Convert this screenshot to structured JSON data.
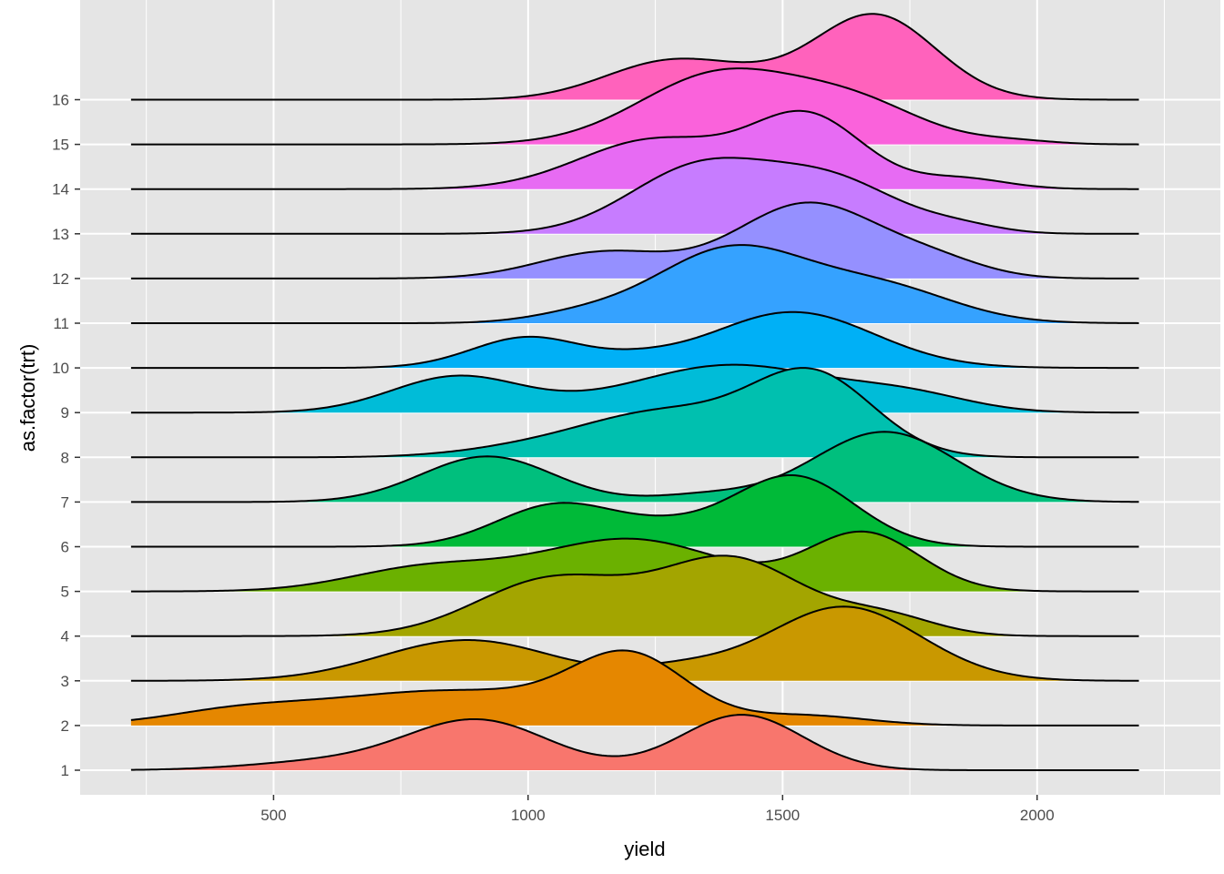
{
  "chart_data": {
    "type": "ridgeline",
    "title": "",
    "xlabel": "yield",
    "ylabel": "as.factor(trt)",
    "xlim": [
      120,
      2360
    ],
    "x_ticks": [
      500,
      1000,
      1500,
      2000
    ],
    "x_tick_labels": [
      "500",
      "1000",
      "1500",
      "2000"
    ],
    "x_minor_ticks": [
      250,
      750,
      1250,
      1750,
      2250
    ],
    "y_tick_labels": [
      "1",
      "2",
      "3",
      "4",
      "5",
      "6",
      "7",
      "8",
      "9",
      "10",
      "11",
      "12",
      "13",
      "14",
      "15",
      "16"
    ],
    "range": [
      220,
      2200
    ],
    "grid": true,
    "legend": "none",
    "background": "#e5e5e5",
    "series": [
      {
        "name": "1",
        "color": "#F8766D",
        "peak": 1.24,
        "components": [
          [
            900,
            140,
            0.9
          ],
          [
            1420,
            120,
            1.0
          ],
          [
            600,
            150,
            0.15
          ]
        ]
      },
      {
        "name": "2",
        "color": "#E58700",
        "peak": 1.68,
        "components": [
          [
            1200,
            110,
            1.0
          ],
          [
            850,
            280,
            0.6
          ],
          [
            1550,
            120,
            0.15
          ],
          [
            420,
            130,
            0.15
          ]
        ]
      },
      {
        "name": "3",
        "color": "#C99800",
        "peak": 1.66,
        "components": [
          [
            1620,
            150,
            1.0
          ],
          [
            880,
            170,
            0.55
          ],
          [
            1300,
            100,
            0.15
          ]
        ]
      },
      {
        "name": "4",
        "color": "#A3A500",
        "peak": 1.8,
        "components": [
          [
            1400,
            140,
            1.0
          ],
          [
            1050,
            150,
            0.75
          ],
          [
            1700,
            100,
            0.25
          ]
        ]
      },
      {
        "name": "5",
        "color": "#6BB100",
        "peak": 1.34,
        "components": [
          [
            1660,
            110,
            1.0
          ],
          [
            1200,
            180,
            0.9
          ],
          [
            800,
            150,
            0.4
          ]
        ]
      },
      {
        "name": "6",
        "color": "#00BA38",
        "peak": 1.6,
        "components": [
          [
            1520,
            120,
            1.0
          ],
          [
            1060,
            120,
            0.6
          ],
          [
            1280,
            100,
            0.2
          ]
        ]
      },
      {
        "name": "7",
        "color": "#00BF7D",
        "peak": 1.57,
        "components": [
          [
            1700,
            140,
            1.0
          ],
          [
            920,
            130,
            0.65
          ],
          [
            1350,
            100,
            0.1
          ]
        ]
      },
      {
        "name": "8",
        "color": "#00C0AF",
        "peak": 2.0,
        "components": [
          [
            1560,
            120,
            1.0
          ],
          [
            1270,
            160,
            0.55
          ],
          [
            1000,
            140,
            0.1
          ]
        ]
      },
      {
        "name": "9",
        "color": "#00BCD8",
        "peak": 1.07,
        "components": [
          [
            1400,
            200,
            1.0
          ],
          [
            860,
            130,
            0.75
          ],
          [
            1750,
            120,
            0.3
          ]
        ]
      },
      {
        "name": "10",
        "color": "#00B0F6",
        "peak": 1.25,
        "components": [
          [
            1520,
            160,
            1.0
          ],
          [
            1000,
            110,
            0.55
          ],
          [
            1220,
            80,
            0.1
          ]
        ]
      },
      {
        "name": "11",
        "color": "#35A2FF",
        "peak": 1.75,
        "components": [
          [
            1400,
            150,
            1.0
          ],
          [
            1700,
            140,
            0.45
          ],
          [
            1100,
            100,
            0.1
          ]
        ]
      },
      {
        "name": "12",
        "color": "#9590FF",
        "peak": 1.7,
        "components": [
          [
            1550,
            140,
            1.0
          ],
          [
            1150,
            130,
            0.35
          ],
          [
            1800,
            100,
            0.2
          ]
        ]
      },
      {
        "name": "13",
        "color": "#C77CFF",
        "peak": 1.7,
        "components": [
          [
            1340,
            140,
            1.0
          ],
          [
            1600,
            130,
            0.75
          ],
          [
            1850,
            80,
            0.1
          ]
        ]
      },
      {
        "name": "14",
        "color": "#E76BF3",
        "peak": 1.75,
        "components": [
          [
            1550,
            110,
            1.0
          ],
          [
            1250,
            150,
            0.7
          ],
          [
            1850,
            90,
            0.15
          ]
        ]
      },
      {
        "name": "15",
        "color": "#FA62DB",
        "peak": 1.7,
        "components": [
          [
            1380,
            160,
            1.0
          ],
          [
            1650,
            130,
            0.5
          ],
          [
            1950,
            80,
            0.05
          ]
        ]
      },
      {
        "name": "16",
        "color": "#FF62BC",
        "peak": 1.92,
        "components": [
          [
            1680,
            120,
            1.0
          ],
          [
            1280,
            130,
            0.45
          ],
          [
            1450,
            100,
            0.1
          ]
        ]
      }
    ]
  }
}
